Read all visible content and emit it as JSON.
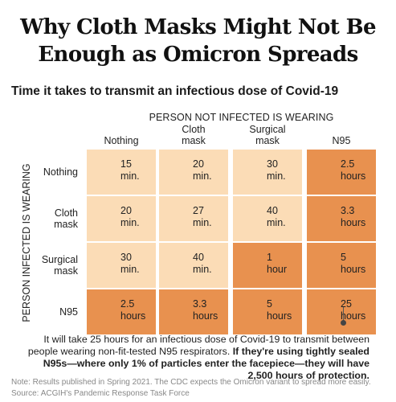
{
  "header": {
    "title_line1": "Why Cloth Masks Might Not Be",
    "title_line2": "Enough as Omicron Spreads",
    "subtitle": "Time it takes to transmit an infectious dose of Covid-19"
  },
  "chart_data": {
    "type": "heatmap",
    "col_axis_title": "PERSON NOT INFECTED IS WEARING",
    "row_axis_title": "PERSON INFECTED IS WEARING",
    "columns": [
      "Nothing",
      "Cloth mask",
      "Surgical mask",
      "N95"
    ],
    "column_lines": [
      [
        "Nothing"
      ],
      [
        "Cloth",
        "mask"
      ],
      [
        "Surgical",
        "mask"
      ],
      [
        "N95"
      ]
    ],
    "rows": [
      "Nothing",
      "Cloth mask",
      "Surgical mask",
      "N95"
    ],
    "row_lines": [
      [
        "Nothing"
      ],
      [
        "Cloth",
        "mask"
      ],
      [
        "Surgical",
        "mask"
      ],
      [
        "N95"
      ]
    ],
    "values_minutes": [
      [
        15,
        20,
        30,
        150
      ],
      [
        20,
        27,
        40,
        198
      ],
      [
        30,
        40,
        60,
        300
      ],
      [
        150,
        198,
        300,
        1500
      ]
    ],
    "cell_labels": [
      [
        [
          "15",
          "min."
        ],
        [
          "20",
          "min."
        ],
        [
          "30",
          "min."
        ],
        [
          "2.5",
          "hours"
        ]
      ],
      [
        [
          "20",
          "min."
        ],
        [
          "27",
          "min."
        ],
        [
          "40",
          "min."
        ],
        [
          "3.3",
          "hours"
        ]
      ],
      [
        [
          "30",
          "min."
        ],
        [
          "40",
          "min."
        ],
        [
          "1",
          "hour"
        ],
        [
          "5",
          "hours"
        ]
      ],
      [
        [
          "2.5",
          "hours"
        ],
        [
          "3.3",
          "hours"
        ],
        [
          "5",
          "hours"
        ],
        [
          "25",
          "hours"
        ]
      ]
    ],
    "colors": {
      "under_one_hour": "#fbdcb6",
      "one_hour_or_more": "#e8914f"
    }
  },
  "annotation": {
    "part1": "It will take 25 hours for an infectious dose of Covid-19 to transmit between people wearing non-fit-tested N95 respirators. ",
    "part2": "If they're using tightly sealed N95s—where only 1% of particles enter the facepiece—they will have 2,500 hours of protection."
  },
  "footer": {
    "note": "Note: Results published in Spring 2021. The CDC expects the Omicron variant to spread more easily.",
    "source": "Source: ACGIH's Pandemic Response Task Force"
  }
}
